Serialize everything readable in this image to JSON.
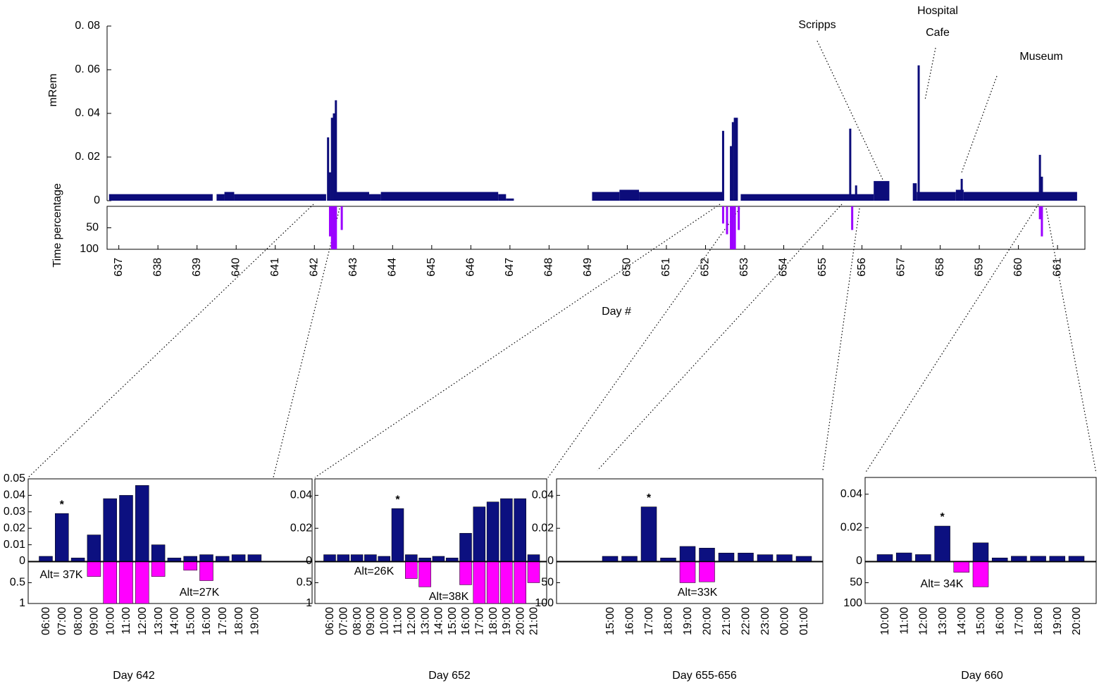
{
  "chart_data": [
    {
      "type": "bar",
      "ylabel": "mRem",
      "y2label": "Time percentage",
      "xlabel": "Day #",
      "xlim": [
        636.7,
        661.7
      ],
      "xticks": [
        637,
        638,
        639,
        640,
        641,
        642,
        643,
        644,
        645,
        646,
        647,
        648,
        649,
        650,
        651,
        652,
        653,
        654,
        655,
        656,
        657,
        658,
        659,
        660,
        661
      ],
      "ylim": [
        0,
        0.08
      ],
      "yticks": [
        0,
        {
          "value": 0.02,
          "label": "0. 02"
        },
        {
          "value": 0.04,
          "label": "0. 04"
        },
        {
          "value": 0.06,
          "label": "0. 06"
        },
        {
          "value": 0.08,
          "label": "0. 08"
        }
      ],
      "y2lim": [
        0,
        100
      ],
      "y2ticks": [
        50,
        100
      ],
      "annotations": [
        "Scripps",
        "Hospital",
        "Cafe",
        "Museum"
      ],
      "level": {
        "color": "#0c0c7a",
        "x": [
          636.75,
          639.4,
          639.5,
          639.7,
          639.95,
          642.3,
          642.5,
          643.4,
          643.7,
          646.7,
          646.9,
          647.1,
          649.1,
          649.8,
          650.3,
          652.45,
          652.9,
          656.3,
          656.7,
          657.3,
          657.4,
          658.4,
          658.6,
          661.5
        ],
        "values": [
          0.003,
          0,
          0.003,
          0.004,
          0.003,
          0,
          0.004,
          0.003,
          0.004,
          0.003,
          0.001,
          0,
          0.004,
          0.005,
          0.004,
          0,
          0.003,
          0.009,
          0,
          0.008,
          0.004,
          0.005,
          0.004,
          0
        ]
      },
      "series": [
        {
          "color": "#0c0c7a",
          "x": [
            642.35,
            642.4,
            642.45,
            642.5,
            642.55,
            652.45,
            652.65,
            652.7,
            652.75,
            652.8,
            655.7,
            655.85,
            657.45,
            658.55,
            660.55,
            660.6
          ],
          "values": [
            0.029,
            0.013,
            0.038,
            0.04,
            0.046,
            0.032,
            0.025,
            0.036,
            0.038,
            0.038,
            0.033,
            0.007,
            0.062,
            0.01,
            0.021,
            0.011
          ]
        },
        {
          "color": "#9b00ff",
          "axis": "y2",
          "x": [
            642.4,
            642.45,
            642.5,
            642.55,
            642.7,
            652.45,
            652.55,
            652.65,
            652.7,
            652.75,
            652.85,
            655.75,
            660.55,
            660.6
          ],
          "values": [
            70,
            100,
            100,
            100,
            55,
            40,
            65,
            100,
            100,
            100,
            55,
            55,
            30,
            70
          ]
        }
      ]
    },
    {
      "type": "bar",
      "title": "Day 642",
      "categories": [
        "06:00",
        "07:00",
        "08:00",
        "09:00",
        "10:00",
        "11:00",
        "12:00",
        "13:00",
        "14:00",
        "15:00",
        "16:00",
        "17:00",
        "18:00",
        "19:00"
      ],
      "ylim": [
        0,
        0.05
      ],
      "yticks": [
        0,
        0.01,
        0.02,
        0.03,
        0.04,
        0.05
      ],
      "y2lim": [
        0,
        1
      ],
      "y2ticks": [
        0.5,
        1
      ],
      "star": "*",
      "annotations": [
        "Alt= 37K",
        "Alt=27K"
      ],
      "series": [
        {
          "color": "#0c1080",
          "values": [
            0.003,
            0.029,
            0.002,
            0.016,
            0.038,
            0.04,
            0.046,
            0.01,
            0.002,
            0.003,
            0.004,
            0.003,
            0.004,
            0.004
          ]
        },
        {
          "color": "#ff00ff",
          "axis": "y2",
          "values": [
            0,
            0,
            0,
            0.35,
            1,
            1,
            1,
            0.35,
            0,
            0.2,
            0.45,
            0,
            0,
            0
          ]
        }
      ]
    },
    {
      "type": "bar",
      "title": "Day 652",
      "categories": [
        "06:00",
        "07:00",
        "08:00",
        "09:00",
        "10:00",
        "11:00",
        "12:00",
        "13:00",
        "14:00",
        "15:00",
        "16:00",
        "17:00",
        "18:00",
        "19:00",
        "20:00",
        "21:00"
      ],
      "ylim": [
        0,
        0.05
      ],
      "yticks": [
        0,
        0.02,
        0.04
      ],
      "y2lim": [
        0,
        1
      ],
      "y2ticks": [
        0.5,
        1
      ],
      "star": "*",
      "annotations": [
        "Alt=26K",
        "Alt=38K"
      ],
      "series": [
        {
          "color": "#0c1080",
          "values": [
            0.004,
            0.004,
            0.004,
            0.004,
            0.003,
            0.032,
            0.004,
            0.002,
            0.003,
            0.002,
            0.017,
            0.033,
            0.036,
            0.038,
            0.038,
            0.004
          ]
        },
        {
          "color": "#ff00ff",
          "axis": "y2",
          "values": [
            0,
            0,
            0,
            0,
            0,
            0,
            0.4,
            0.6,
            0,
            0,
            0.55,
            1,
            1,
            1,
            1,
            0.5
          ]
        }
      ]
    },
    {
      "type": "bar",
      "title": "Day 655-656",
      "categories": [
        "15:00",
        "16:00",
        "17:00",
        "18:00",
        "19:00",
        "20:00",
        "21:00",
        "22:00",
        "23:00",
        "00:00",
        "01:00"
      ],
      "ylim": [
        0,
        0.05
      ],
      "yticks": [
        0,
        0.02,
        0.04
      ],
      "y2lim": [
        0,
        100
      ],
      "y2ticks": [
        50,
        100
      ],
      "star": "*",
      "annotations": [
        "Alt=33K"
      ],
      "series": [
        {
          "color": "#0c1080",
          "values": [
            0.003,
            0.003,
            0.033,
            0.002,
            0.009,
            0.008,
            0.005,
            0.005,
            0.004,
            0.004,
            0.003
          ]
        },
        {
          "color": "#ff00ff",
          "axis": "y2",
          "values": [
            0,
            0,
            0,
            0,
            50,
            48,
            0,
            0,
            0,
            0,
            0
          ]
        }
      ]
    },
    {
      "type": "bar",
      "title": "Day 660",
      "categories": [
        "10:00",
        "11:00",
        "12:00",
        "13:00",
        "14:00",
        "15:00",
        "16:00",
        "17:00",
        "18:00",
        "19:00",
        "20:00"
      ],
      "ylim": [
        0,
        0.05
      ],
      "yticks": [
        0,
        0.02,
        0.04
      ],
      "y2lim": [
        0,
        100
      ],
      "y2ticks": [
        50,
        100
      ],
      "star": "*",
      "annotations": [
        "Alt= 34K"
      ],
      "series": [
        {
          "color": "#0c1080",
          "values": [
            0.004,
            0.005,
            0.004,
            0.021,
            null,
            0.011,
            0.002,
            0.003,
            0.003,
            0.003,
            0.003
          ]
        },
        {
          "color": "#ff00ff",
          "axis": "y2",
          "values": [
            0,
            0,
            0,
            0,
            25,
            60,
            0,
            0,
            0,
            0,
            0
          ]
        }
      ]
    }
  ]
}
